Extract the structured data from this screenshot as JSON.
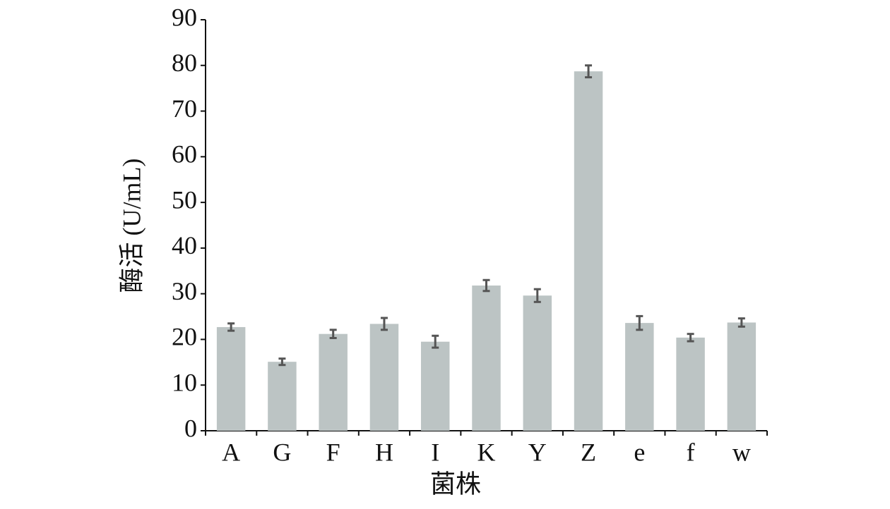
{
  "chart_data": {
    "type": "bar",
    "x_label": "菌株",
    "y_label": "酶活 (U/mL)",
    "categories": [
      "A",
      "G",
      "F",
      "H",
      "I",
      "K",
      "Y",
      "Z",
      "e",
      "f",
      "w"
    ],
    "values": [
      22.7,
      15.1,
      21.2,
      23.4,
      19.5,
      31.8,
      29.6,
      78.7,
      23.6,
      20.4,
      23.7
    ],
    "errors": [
      0.8,
      0.7,
      0.9,
      1.3,
      1.3,
      1.2,
      1.4,
      1.3,
      1.5,
      0.8,
      0.9
    ],
    "color": "#bcc4c4",
    "error_color": "#555555",
    "ylim": [
      0,
      90
    ],
    "yticks": [
      0,
      10,
      20,
      30,
      40,
      50,
      60,
      70,
      80,
      90
    ]
  }
}
